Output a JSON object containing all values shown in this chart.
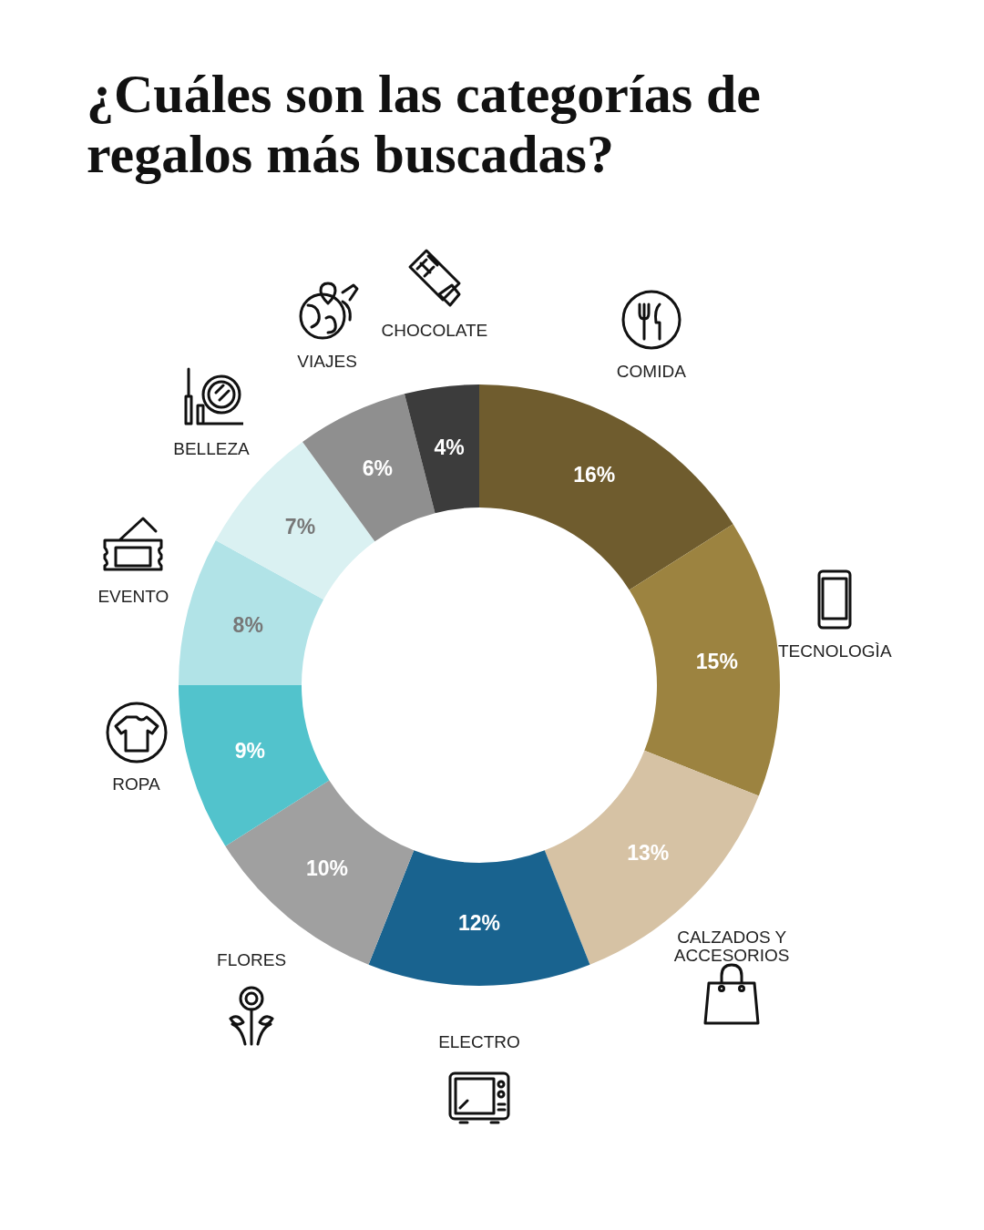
{
  "chart_data": {
    "type": "donut",
    "title": "¿Cuáles son las categorías de regalos más buscadas?",
    "categories": [
      "COMIDA",
      "TECNOLOGÌA",
      "CALZADOS Y ACCESORIOS",
      "ELECTRO",
      "FLORES",
      "ROPA",
      "EVENTO",
      "BELLEZA",
      "VIAJES",
      "CHOCOLATE"
    ],
    "values": [
      16,
      15,
      13,
      12,
      10,
      9,
      8,
      7,
      6,
      4
    ],
    "colors": [
      "#6f5c2e",
      "#9c8340",
      "#d6c2a4",
      "#19638f",
      "#a0a0a0",
      "#52c3cc",
      "#b1e3e7",
      "#daf1f2",
      "#8f8f8f",
      "#3c3c3c"
    ],
    "value_labels": [
      "16%",
      "15%",
      "13%",
      "12%",
      "10%",
      "9%",
      "8%",
      "7%",
      "6%",
      "4%"
    ]
  }
}
